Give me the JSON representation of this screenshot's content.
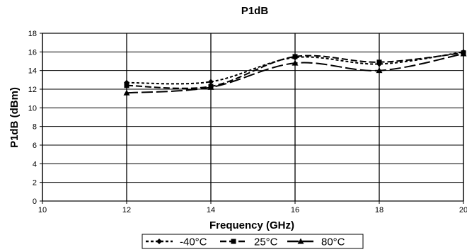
{
  "chart_data": {
    "type": "line",
    "title": "P1dB",
    "xlabel": "Frequency (GHz)",
    "ylabel": "P1dB (dBm)",
    "xlim": [
      10,
      20
    ],
    "ylim": [
      0,
      18
    ],
    "x_ticks": [
      "10",
      "12",
      "14",
      "16",
      "18",
      "20"
    ],
    "y_ticks": [
      "0",
      "2",
      "4",
      "6",
      "8",
      "10",
      "12",
      "14",
      "16",
      "18"
    ],
    "grid": true,
    "legend_position": "bottom",
    "x": [
      12,
      14,
      16,
      18,
      20
    ],
    "series": [
      {
        "name": "-40°C",
        "marker": "diamond",
        "dash": "short",
        "color": "#000000",
        "values": [
          12.7,
          12.8,
          15.4,
          14.7,
          16.0
        ]
      },
      {
        "name": "25°C",
        "marker": "square",
        "dash": "medium",
        "color": "#000000",
        "values": [
          12.4,
          12.3,
          15.5,
          14.9,
          15.9
        ]
      },
      {
        "name": "80°C",
        "marker": "triangle",
        "dash": "long",
        "color": "#000000",
        "values": [
          11.6,
          12.2,
          14.8,
          14.0,
          15.8
        ]
      }
    ]
  }
}
